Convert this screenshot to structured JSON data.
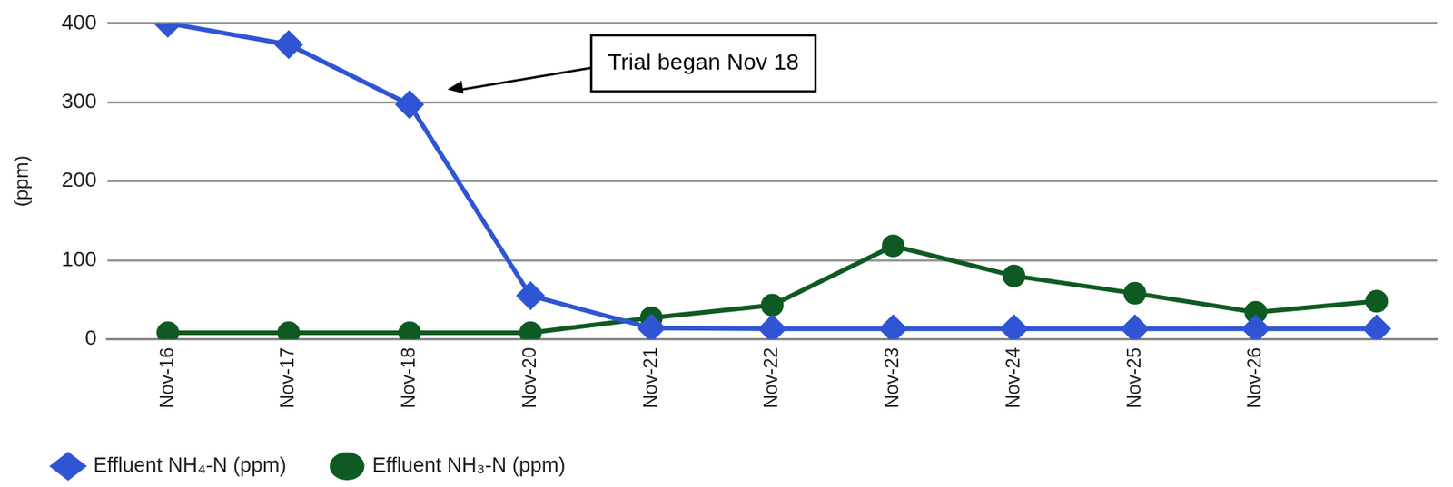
{
  "chart_data": {
    "type": "line",
    "y_label": "(ppm)",
    "annotation": {
      "text": "Trial began Nov 18",
      "x": "Nov-18"
    },
    "categories": [
      "Nov-16",
      "Nov-17",
      "Nov-18",
      "Nov-20",
      "Nov-21",
      "Nov-22",
      "Nov-23",
      "Nov-24",
      "Nov-25",
      "Nov-26",
      null
    ],
    "series": [
      {
        "name": "Effluent NH₄-N (ppm)",
        "color": "#2f55d4",
        "marker": "diamond",
        "values": [
          400,
          373,
          297,
          55,
          14,
          13,
          13,
          13,
          13,
          13,
          13
        ]
      },
      {
        "name": "Effluent NH₃-N (ppm)",
        "color": "#0f5a23",
        "marker": "circle",
        "values": [
          8,
          8,
          8,
          8,
          27,
          43,
          118,
          80,
          58,
          34,
          48
        ]
      }
    ],
    "ylim": [
      0,
      400
    ],
    "yticks": [
      0,
      100,
      200,
      300,
      400
    ],
    "grid": true,
    "legend": "bottom"
  }
}
